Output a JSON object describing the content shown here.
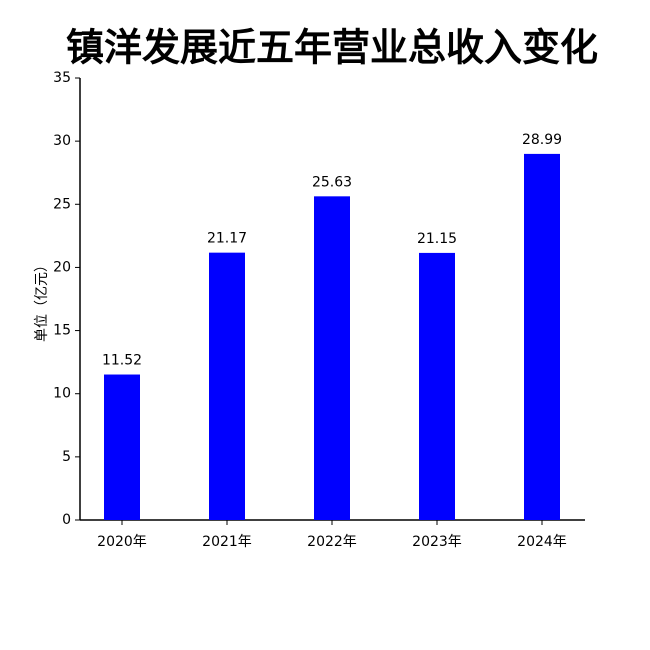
{
  "chart_data": {
    "type": "bar",
    "title": "镇洋发展近五年营业总收入变化",
    "y_label": "单位（亿元）",
    "categories": [
      "2020年",
      "2021年",
      "2022年",
      "2023年",
      "2024年"
    ],
    "values": [
      11.52,
      21.17,
      25.63,
      21.15,
      28.99
    ],
    "color": "#0000ff",
    "ylim": [
      0,
      35
    ],
    "yticks": [
      0,
      5,
      10,
      15,
      20,
      25,
      30,
      35
    ],
    "grid": false
  }
}
